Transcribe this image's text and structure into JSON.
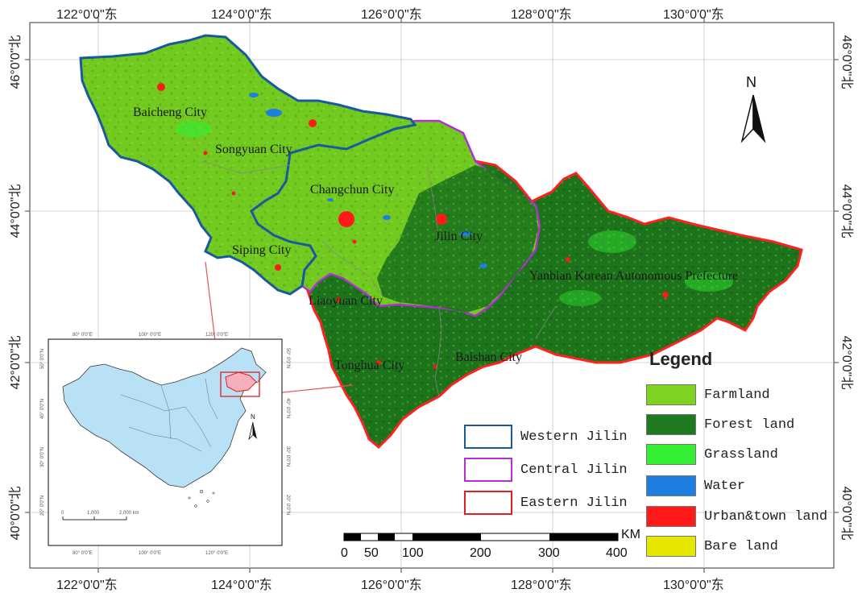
{
  "axes": {
    "top_lon": [
      "122°0'0\"东",
      "124°0'0\"东",
      "126°0'0\"东",
      "128°0'0\"东",
      "130°0'0\"东"
    ],
    "bottom_lon": [
      "122°0'0\"东",
      "124°0'0\"东",
      "126°0'0\"东",
      "128°0'0\"东",
      "130°0'0\"东"
    ],
    "left_lat": [
      "46°0'0\"北",
      "44°0'0\"北",
      "42°0'0\"北",
      "40°0'0\"北"
    ],
    "right_lat": [
      "46°0'0\"北",
      "44°0'0\"北",
      "42°0'0\"北",
      "40°0'0\"北"
    ]
  },
  "cities": {
    "baicheng": "Baicheng City",
    "songyuan": "Songyuan City",
    "changchun": "Changchun City",
    "jilin": "Jilin City",
    "siping": "Siping City",
    "liaoyuan": "Liaoyuan City",
    "yanbian": "Yanbian Korean Autonomous Prefecture",
    "tonghua": "Tonghua City",
    "baishan": "Baishan City"
  },
  "north_arrow": "N",
  "legend": {
    "title": "Legend",
    "items": [
      {
        "label": "Farmland",
        "color": "#7ed321"
      },
      {
        "label": "Forest land",
        "color": "#1f7a1f"
      },
      {
        "label": "Grassland",
        "color": "#33ee33"
      },
      {
        "label": "Water",
        "color": "#1e7fe0"
      },
      {
        "label": "Urban&town land",
        "color": "#ff1a1a"
      },
      {
        "label": "Bare land",
        "color": "#e6e600"
      }
    ]
  },
  "regions": [
    {
      "label": "Western Jilin",
      "color": "#1a5a9c"
    },
    {
      "label": "Central Jilin",
      "color": "#b030d0"
    },
    {
      "label": "Eastern Jilin",
      "color": "#e02020"
    }
  ],
  "scale_bar": {
    "unit": "KM",
    "ticks": [
      "0",
      "50",
      "100",
      "200",
      "300",
      "400"
    ]
  },
  "inset": {
    "north": "N",
    "scale_ticks": [
      "0",
      "1,000",
      "2,000 km"
    ],
    "top_ticks": [
      "80° 0'0\"E",
      "100° 0'0\"E",
      "120° 0'0\"E"
    ],
    "bottom_ticks": [
      "80° 0'0\"E",
      "100° 0'0\"E",
      "120° 0'0\"E"
    ],
    "left_ticks": [
      "50° 0'0\"N",
      "40° 0'0\"N",
      "30° 0'0\"N",
      "20° 0'0\"N"
    ],
    "right_ticks": [
      "50° 0'0\"N",
      "40° 0'0\"N",
      "30° 0'0\"N",
      "20° 0'0\"N"
    ]
  }
}
